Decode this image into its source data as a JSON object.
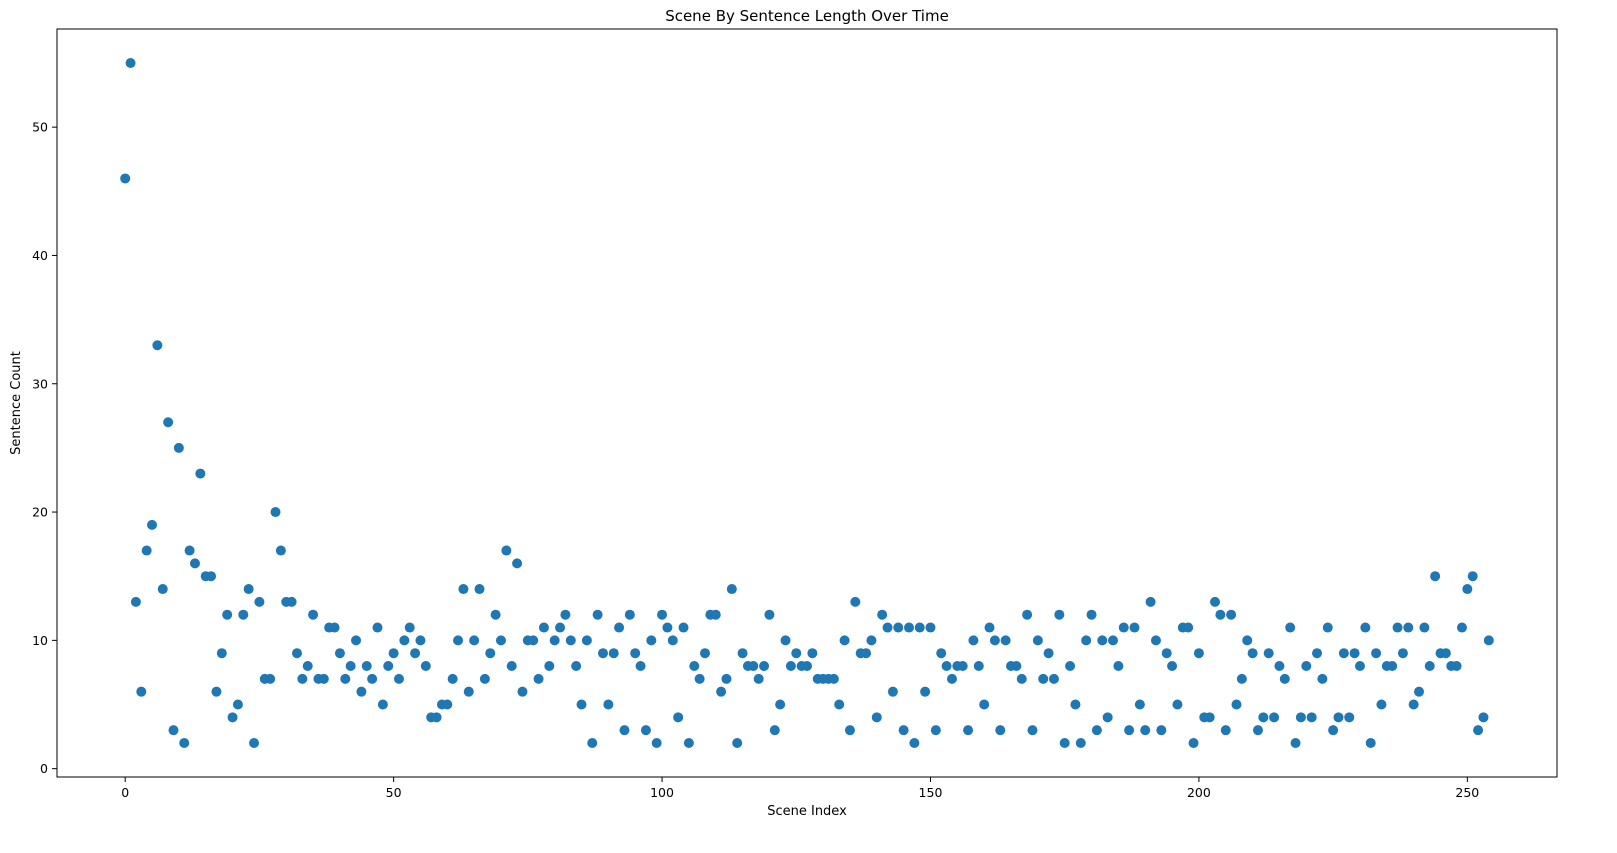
{
  "chart_data": {
    "type": "scatter",
    "title": "Scene By Sentence Length Over Time",
    "xlabel": "Scene Index",
    "ylabel": "Sentence Count",
    "xlim": [
      -12.7,
      266.7
    ],
    "ylim": [
      -0.65,
      57.65
    ],
    "xticks": [
      0,
      50,
      100,
      150,
      200,
      250
    ],
    "yticks": [
      0,
      10,
      20,
      30,
      40,
      50
    ],
    "grid": false,
    "color": "#1f77b4",
    "x_start": 0,
    "values": [
      46,
      55,
      13,
      6,
      17,
      19,
      33,
      14,
      27,
      3,
      25,
      2,
      17,
      16,
      23,
      15,
      15,
      6,
      9,
      12,
      4,
      5,
      12,
      14,
      2,
      13,
      7,
      7,
      20,
      17,
      13,
      13,
      9,
      7,
      8,
      12,
      7,
      7,
      11,
      11,
      9,
      7,
      8,
      10,
      6,
      8,
      7,
      11,
      5,
      8,
      9,
      7,
      10,
      11,
      9,
      10,
      8,
      4,
      4,
      5,
      5,
      7,
      10,
      14,
      6,
      10,
      14,
      7,
      9,
      12,
      10,
      17,
      8,
      16,
      6,
      10,
      10,
      7,
      11,
      8,
      10,
      11,
      12,
      10,
      8,
      5,
      10,
      2,
      12,
      9,
      5,
      9,
      11,
      3,
      12,
      9,
      8,
      3,
      10,
      2,
      12,
      11,
      10,
      4,
      11,
      2,
      8,
      7,
      9,
      12,
      12,
      6,
      7,
      14,
      2,
      9,
      8,
      8,
      7,
      8,
      12,
      3,
      5,
      10,
      8,
      9,
      8,
      8,
      9,
      7,
      7,
      7,
      7,
      5,
      10,
      3,
      13,
      9,
      9,
      10,
      4,
      12,
      11,
      6,
      11,
      3,
      11,
      2,
      11,
      6,
      11,
      3,
      9,
      8,
      7,
      8,
      8,
      3,
      10,
      8,
      5,
      11,
      10,
      3,
      10,
      8,
      8,
      7,
      12,
      3,
      10,
      7,
      9,
      7,
      12,
      2,
      8,
      5,
      2,
      10,
      12,
      3,
      10,
      4,
      10,
      8,
      11,
      3,
      11,
      5,
      3,
      13,
      10,
      3,
      9,
      8,
      5,
      11,
      11,
      2,
      9,
      4,
      4,
      13,
      12,
      3,
      12,
      5,
      7,
      10,
      9,
      3,
      4,
      9,
      4,
      8,
      7,
      11,
      2,
      4,
      8,
      4,
      9,
      7,
      11,
      3,
      4,
      9,
      4,
      9,
      8,
      11,
      2,
      9,
      5,
      8,
      8,
      11,
      9,
      11,
      5,
      6,
      11,
      8,
      15,
      9,
      9,
      8,
      8,
      11,
      14,
      15,
      3,
      4,
      10
    ]
  }
}
